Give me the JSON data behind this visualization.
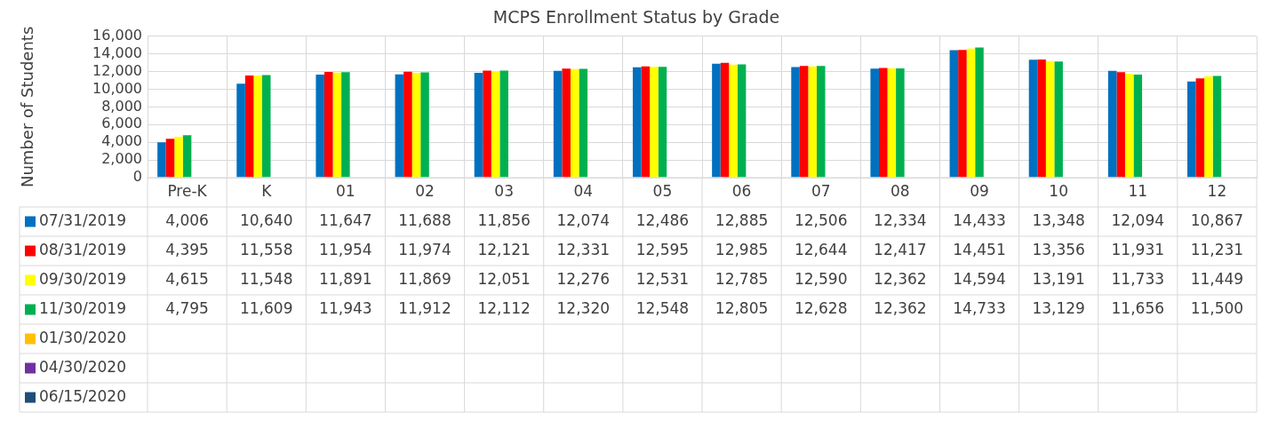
{
  "chart_data": {
    "type": "bar",
    "title": "MCPS Enrollment Status by Grade",
    "ylabel": "Number of Students",
    "categories": [
      "Pre-K",
      "K",
      "01",
      "02",
      "03",
      "04",
      "05",
      "06",
      "07",
      "08",
      "09",
      "10",
      "11",
      "12"
    ],
    "series": [
      {
        "name": "07/31/2019",
        "color": "#0070c0",
        "values": [
          4006,
          10640,
          11647,
          11688,
          11856,
          12074,
          12486,
          12885,
          12506,
          12334,
          14433,
          13348,
          12094,
          10867
        ],
        "value_labels": [
          "4,006",
          "10,640",
          "11,647",
          "11,688",
          "11,856",
          "12,074",
          "12,486",
          "12,885",
          "12,506",
          "12,334",
          "14,433",
          "13,348",
          "12,094",
          "10,867"
        ]
      },
      {
        "name": "08/31/2019",
        "color": "#ff0000",
        "values": [
          4395,
          11558,
          11954,
          11974,
          12121,
          12331,
          12595,
          12985,
          12644,
          12417,
          14451,
          13356,
          11931,
          11231
        ],
        "value_labels": [
          "4,395",
          "11,558",
          "11,954",
          "11,974",
          "12,121",
          "12,331",
          "12,595",
          "12,985",
          "12,644",
          "12,417",
          "14,451",
          "13,356",
          "11,931",
          "11,231"
        ]
      },
      {
        "name": "09/30/2019",
        "color": "#ffff00",
        "values": [
          4615,
          11548,
          11891,
          11869,
          12051,
          12276,
          12531,
          12785,
          12590,
          12362,
          14594,
          13191,
          11733,
          11449
        ],
        "value_labels": [
          "4,615",
          "11,548",
          "11,891",
          "11,869",
          "12,051",
          "12,276",
          "12,531",
          "12,785",
          "12,590",
          "12,362",
          "14,594",
          "13,191",
          "11,733",
          "11,449"
        ]
      },
      {
        "name": "11/30/2019",
        "color": "#00b050",
        "values": [
          4795,
          11609,
          11943,
          11912,
          12112,
          12320,
          12548,
          12805,
          12628,
          12362,
          14733,
          13129,
          11656,
          11500
        ],
        "value_labels": [
          "4,795",
          "11,609",
          "11,943",
          "11,912",
          "12,112",
          "12,320",
          "12,548",
          "12,805",
          "12,628",
          "12,362",
          "14,733",
          "13,129",
          "11,656",
          "11,500"
        ]
      },
      {
        "name": "01/30/2020",
        "color": "#ffc000",
        "values": [
          null,
          null,
          null,
          null,
          null,
          null,
          null,
          null,
          null,
          null,
          null,
          null,
          null,
          null
        ]
      },
      {
        "name": "04/30/2020",
        "color": "#7030a0",
        "values": [
          null,
          null,
          null,
          null,
          null,
          null,
          null,
          null,
          null,
          null,
          null,
          null,
          null,
          null
        ]
      },
      {
        "name": "06/15/2020",
        "color": "#1f4e79",
        "values": [
          null,
          null,
          null,
          null,
          null,
          null,
          null,
          null,
          null,
          null,
          null,
          null,
          null,
          null
        ]
      }
    ],
    "ylim": [
      0,
      16000
    ],
    "yticks": [
      0,
      {
        "value": 2000,
        "label": "2,000"
      },
      {
        "value": 4000,
        "label": "4,000"
      },
      {
        "value": 6000,
        "label": "6,000"
      },
      {
        "value": 8000,
        "label": "8,000"
      },
      {
        "value": 10000,
        "label": "10,000"
      },
      {
        "value": 12000,
        "label": "12,000"
      },
      {
        "value": 14000,
        "label": "14,000"
      },
      {
        "value": 16000,
        "label": "16,000"
      }
    ],
    "grid": true,
    "legend": "bottom"
  }
}
